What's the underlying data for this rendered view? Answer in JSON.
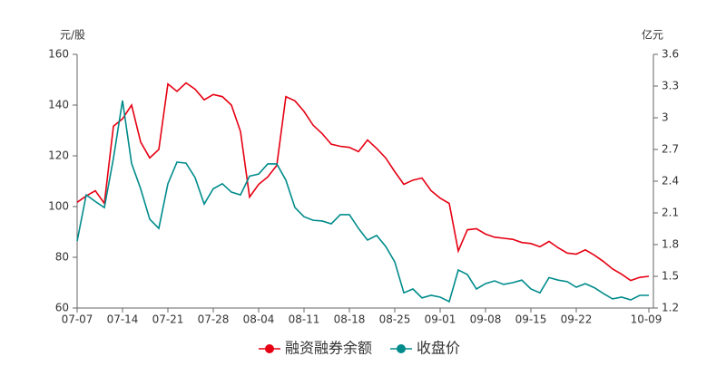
{
  "chart_data": {
    "type": "line",
    "y_unit": "元/股",
    "y2_unit": "亿元",
    "categories": [
      "07-07",
      null,
      null,
      null,
      null,
      "07-14",
      null,
      null,
      null,
      null,
      "07-21",
      null,
      null,
      null,
      null,
      "07-28",
      null,
      null,
      null,
      null,
      "08-04",
      null,
      null,
      null,
      null,
      "08-11",
      null,
      null,
      null,
      null,
      "08-18",
      null,
      null,
      null,
      null,
      "08-25",
      null,
      null,
      null,
      null,
      "09-01",
      null,
      null,
      null,
      null,
      "09-08",
      null,
      null,
      null,
      null,
      "09-15",
      null,
      null,
      null,
      null,
      "09-22",
      null,
      null,
      null,
      null,
      null,
      null,
      null,
      "10-09"
    ],
    "ylim": [
      60,
      160
    ],
    "yticks": [
      60,
      80,
      100,
      120,
      140,
      160
    ],
    "y2lim": [
      1.2,
      3.6
    ],
    "y2ticks": [
      1.2,
      1.5,
      1.8,
      2.1,
      2.4,
      2.7,
      3,
      3.3,
      3.6
    ],
    "series": [
      {
        "name": "融资融券余额",
        "color": "#e60012",
        "axis": "y2",
        "values": [
          2.2,
          2.26,
          2.31,
          2.19,
          2.92,
          2.99,
          3.12,
          2.77,
          2.62,
          2.7,
          3.32,
          3.25,
          3.33,
          3.27,
          3.17,
          3.22,
          3.2,
          3.12,
          2.87,
          2.25,
          2.37,
          2.44,
          2.55,
          3.2,
          3.16,
          3.06,
          2.93,
          2.85,
          2.75,
          2.73,
          2.72,
          2.68,
          2.79,
          2.71,
          2.62,
          2.49,
          2.37,
          2.41,
          2.43,
          2.31,
          2.24,
          2.19,
          1.74,
          1.94,
          1.95,
          1.9,
          1.87,
          1.86,
          1.85,
          1.82,
          1.81,
          1.78,
          1.83,
          1.77,
          1.72,
          1.71,
          1.75,
          1.7,
          1.64,
          1.57,
          1.52,
          1.46,
          1.49,
          1.5
        ]
      },
      {
        "name": "收盘价",
        "color": "#008b8b",
        "values": [
          86.4,
          104.6,
          102,
          99.6,
          119,
          141.8,
          117,
          107,
          95,
          91.4,
          109,
          117.5,
          117.1,
          111.4,
          101,
          107,
          109,
          105.7,
          104.6,
          112,
          112.8,
          116.8,
          116.8,
          110.4,
          99.6,
          96,
          94.6,
          94.3,
          93.2,
          96.8,
          96.8,
          91.4,
          86.8,
          88.6,
          84.3,
          78.2,
          66,
          67.5,
          64,
          65,
          64.3,
          62.5,
          75,
          73.2,
          67.5,
          69.6,
          70.7,
          69.3,
          70,
          71,
          67.5,
          66,
          72,
          71,
          70.4,
          68.2,
          69.6,
          68,
          65.7,
          63.6,
          64.3,
          63.2,
          65,
          65
        ]
      }
    ]
  }
}
